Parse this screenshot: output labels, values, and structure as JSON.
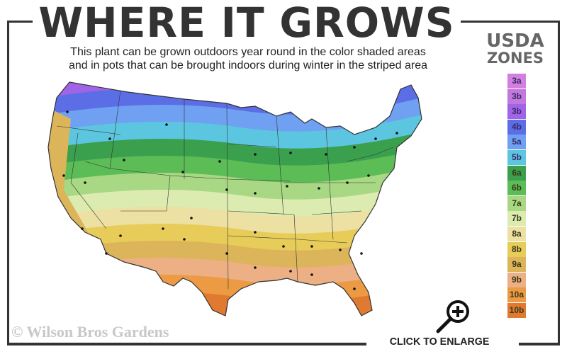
{
  "header": {
    "title": "WHERE IT GROWS",
    "subtitle_line1": "This plant can be grown outdoors year round in the color shaded areas",
    "subtitle_line2": "and in pots that can be brought indoors during winter in the striped area"
  },
  "legend": {
    "title_line1": "USDA",
    "title_line2": "ZONES",
    "zones": [
      {
        "label": "3a",
        "color": "#d27fe0"
      },
      {
        "label": "3b",
        "color": "#c278dc"
      },
      {
        "label": "3b",
        "color": "#a064e8"
      },
      {
        "label": "4b",
        "color": "#5b6ee6"
      },
      {
        "label": "5a",
        "color": "#6fa0f2"
      },
      {
        "label": "5b",
        "color": "#5cc6e0"
      },
      {
        "label": "6a",
        "color": "#3aa04e"
      },
      {
        "label": "6b",
        "color": "#5cbc56"
      },
      {
        "label": "7a",
        "color": "#a8d884"
      },
      {
        "label": "7b",
        "color": "#dcecb0"
      },
      {
        "label": "8a",
        "color": "#ece0a2"
      },
      {
        "label": "8b",
        "color": "#e8cc5a"
      },
      {
        "label": "9a",
        "color": "#dcb45a"
      },
      {
        "label": "9b",
        "color": "#ecb084"
      },
      {
        "label": "10a",
        "color": "#ec9a44"
      },
      {
        "label": "10b",
        "color": "#e07a30"
      }
    ]
  },
  "footer": {
    "copyright": "© Wilson Bros Gardens",
    "enlarge_label": "CLICK TO ENLARGE",
    "enlarge_icon": "zoom-in-magnifier-icon"
  }
}
